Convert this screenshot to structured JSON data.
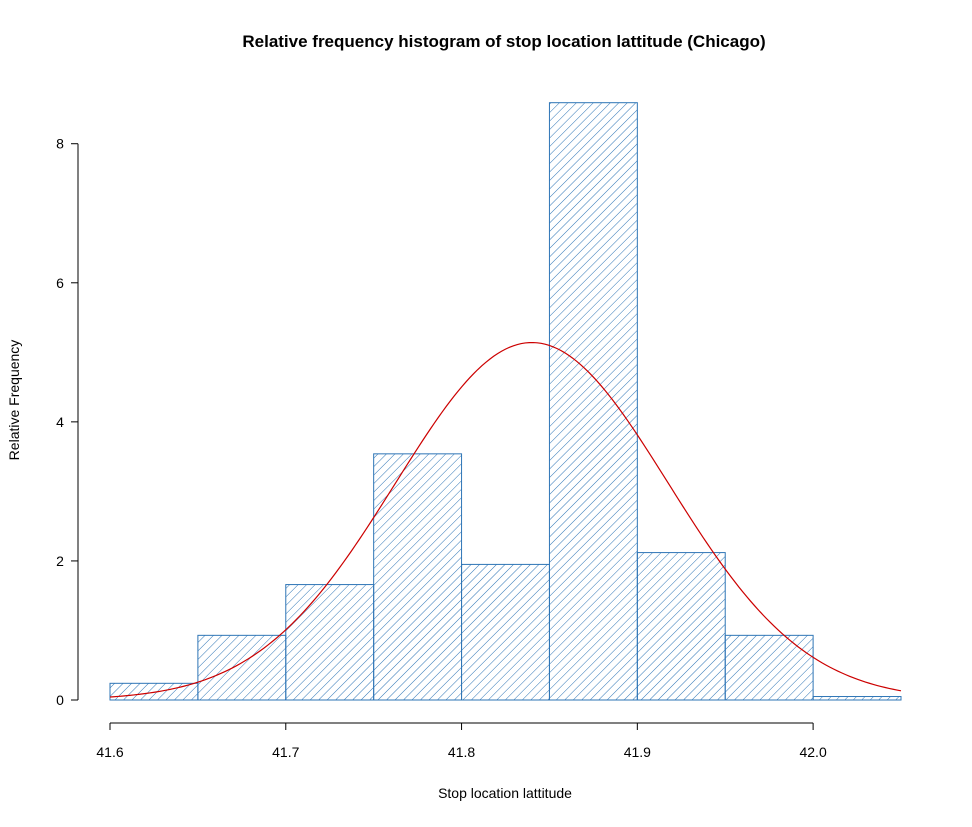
{
  "chart_data": {
    "type": "bar",
    "title": "Relative frequency histogram of stop location lattitude  (Chicago)",
    "xlabel": "Stop location lattitude",
    "ylabel": "Relative Frequency",
    "bins": [
      {
        "start": 41.6,
        "end": 41.65,
        "value": 0.24
      },
      {
        "start": 41.65,
        "end": 41.7,
        "value": 0.93
      },
      {
        "start": 41.7,
        "end": 41.75,
        "value": 1.66
      },
      {
        "start": 41.75,
        "end": 41.8,
        "value": 3.54
      },
      {
        "start": 41.8,
        "end": 41.85,
        "value": 1.95
      },
      {
        "start": 41.85,
        "end": 41.9,
        "value": 8.59
      },
      {
        "start": 41.9,
        "end": 41.95,
        "value": 2.12
      },
      {
        "start": 41.95,
        "end": 42.0,
        "value": 0.93
      },
      {
        "start": 42.0,
        "end": 42.05,
        "value": 0.05
      }
    ],
    "xlim": [
      41.6,
      42.05
    ],
    "ylim": [
      0,
      8.6
    ],
    "x_ticks": [
      "41.6",
      "41.7",
      "41.8",
      "41.9",
      "42.0"
    ],
    "y_ticks": [
      "0",
      "2",
      "4",
      "6",
      "8"
    ],
    "density_curve": {
      "type": "normal",
      "mean": 41.84,
      "sd": 0.0776,
      "color": "#cc0000"
    },
    "bar_color": "#2e75b6",
    "grid": false,
    "legend": "none"
  }
}
